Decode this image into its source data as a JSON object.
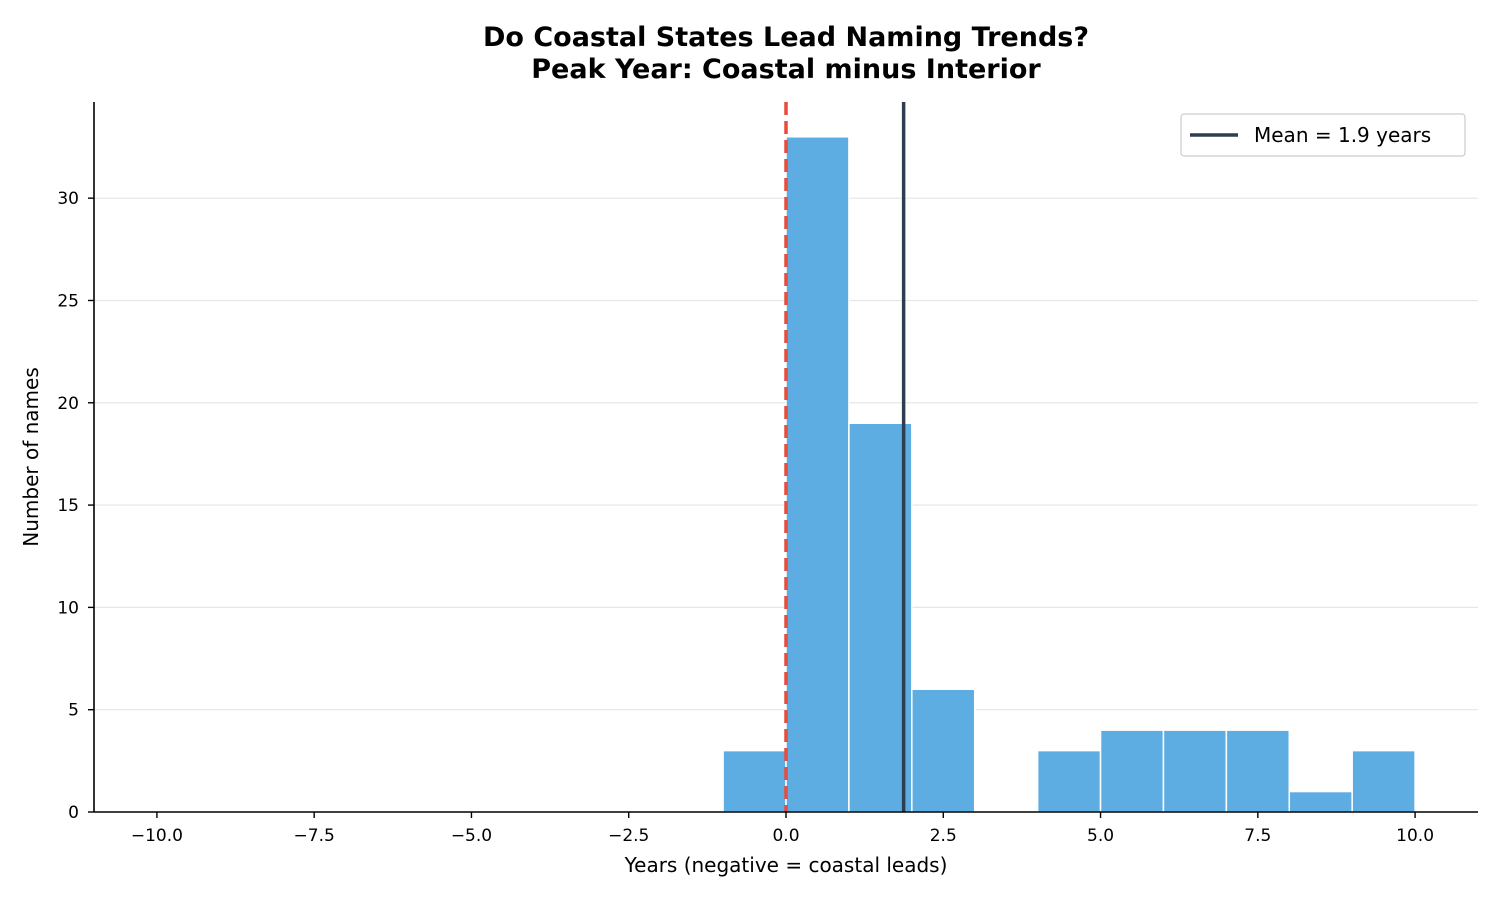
{
  "chart_data": {
    "type": "histogram",
    "title_lines": [
      "Do Coastal States Lead Naming Trends?",
      "Peak Year: Coastal minus Interior"
    ],
    "xlabel": "Years (negative = coastal leads)",
    "ylabel": "Number of names",
    "xlim": [
      -11,
      11
    ],
    "ylim": [
      0,
      34.7
    ],
    "x_ticks": [
      -10.0,
      -7.5,
      -5.0,
      -2.5,
      0.0,
      2.5,
      5.0,
      7.5,
      10.0
    ],
    "x_tick_labels": [
      "−10.0",
      "−7.5",
      "−5.0",
      "−2.5",
      "0.0",
      "2.5",
      "5.0",
      "7.5",
      "10.0"
    ],
    "y_ticks": [
      0,
      5,
      10,
      15,
      20,
      25,
      30
    ],
    "y_tick_labels": [
      "0",
      "5",
      "10",
      "15",
      "20",
      "25",
      "30"
    ],
    "grid": "y-axis horizontal",
    "bins": [
      {
        "x0": -1,
        "x1": 0,
        "count": 3
      },
      {
        "x0": 0,
        "x1": 1,
        "count": 33
      },
      {
        "x0": 1,
        "x1": 2,
        "count": 19
      },
      {
        "x0": 2,
        "x1": 3,
        "count": 6
      },
      {
        "x0": 4,
        "x1": 5,
        "count": 3
      },
      {
        "x0": 5,
        "x1": 6,
        "count": 4
      },
      {
        "x0": 6,
        "x1": 7,
        "count": 4
      },
      {
        "x0": 7,
        "x1": 8,
        "count": 4
      },
      {
        "x0": 8,
        "x1": 9,
        "count": 1
      },
      {
        "x0": 9,
        "x1": 10,
        "count": 3
      }
    ],
    "zero_line": {
      "x": 0,
      "style": "dashed",
      "color": "#e74c3c"
    },
    "mean_line": {
      "x": 1.87,
      "color": "#2c3e50",
      "label": "Mean = 1.9 years"
    },
    "bar_color": "#5dade2",
    "legend_position": "top-right"
  }
}
